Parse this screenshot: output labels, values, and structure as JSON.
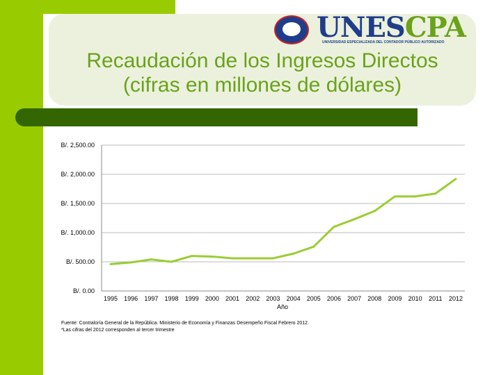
{
  "slide": {
    "title_line1": "Recaudación de los Ingresos Directos",
    "title_line2": "(cifras en millones de dólares)",
    "logo_text_1": "UNES",
    "logo_text_2": "CPA",
    "logo_subtext": "UNIVERSIDAD ESPECIALIZADA DEL CONTADOR PÚBLICO AUTORIZADO",
    "logo_seal_text": "UNESCPA",
    "source_note": "Fuente: Contraloría General de la República. Ministerio de Economía y Finanzas Desempeño Fiscal Febrero 2012.\n*Las cifras del 2012 corresponden al tercer trimestre",
    "colors": {
      "accent": "#99cc00",
      "title": "#6aa21a",
      "dark_bar": "#336600",
      "line": "#9acd32"
    }
  },
  "chart_data": {
    "type": "line",
    "title": "",
    "xlabel": "Año",
    "ylabel": "",
    "ylim": [
      0,
      2500
    ],
    "y_ticks": [
      0,
      500,
      1000,
      1500,
      2000,
      2500
    ],
    "y_tick_labels": [
      "B/. 0.00",
      "B/. 500.00",
      "B/. 1,000.00",
      "B/. 1,500.00",
      "B/. 2,000.00",
      "B/. 2,500.00"
    ],
    "grid": true,
    "categories": [
      "1995",
      "1996",
      "1997",
      "1998",
      "1999",
      "2000",
      "2001",
      "2002",
      "2003",
      "2004",
      "2005",
      "2006",
      "2007",
      "2008",
      "2009",
      "2010",
      "2011",
      "2012"
    ],
    "series": [
      {
        "values": [
          460,
          490,
          540,
          500,
          600,
          590,
          560,
          560,
          560,
          640,
          760,
          1100,
          1230,
          1370,
          1620,
          1620,
          1670,
          1920
        ]
      }
    ]
  }
}
